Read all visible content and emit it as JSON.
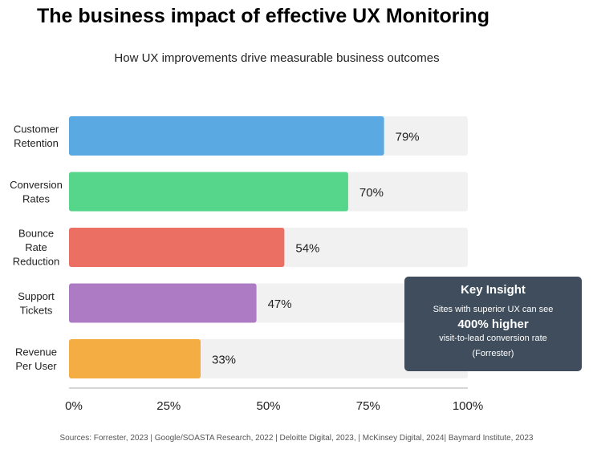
{
  "title": "The business impact of effective UX Monitoring",
  "subtitle": "How UX improvements drive measurable business outcomes",
  "chart_data": {
    "type": "bar",
    "orientation": "horizontal",
    "categories": [
      [
        "Customer",
        "Retention"
      ],
      [
        "Conversion",
        "Rates"
      ],
      [
        "Bounce",
        "Rate",
        "Reduction"
      ],
      [
        "Support",
        "Tickets"
      ],
      [
        "Revenue",
        "Per User"
      ]
    ],
    "values": [
      79,
      70,
      54,
      47,
      33
    ],
    "data_labels": [
      "79%",
      "70%",
      "54%",
      "47%",
      "33%"
    ],
    "colors": [
      "#5aa9e2",
      "#55d68a",
      "#ec6f64",
      "#ad7bc3",
      "#f4ad42"
    ],
    "track_color": "#f1f1f1",
    "xlim": [
      0,
      100
    ],
    "xticks": [
      0,
      25,
      50,
      75,
      100
    ],
    "xtick_labels": [
      "0%",
      "25%",
      "50%",
      "75%",
      "100%"
    ],
    "grid": false
  },
  "insight": {
    "title": "Key Insight",
    "line1": "Sites with superior UX can see",
    "highlight": "400% higher",
    "line2": "visit-to-lead conversion rate",
    "source": "(Forrester)"
  },
  "sources": "Sources: Forrester, 2023 | Google/SOASTA Research, 2022 | Deloitte Digital, 2023, | McKinsey Digital, 2024| Baymard Institute, 2023"
}
